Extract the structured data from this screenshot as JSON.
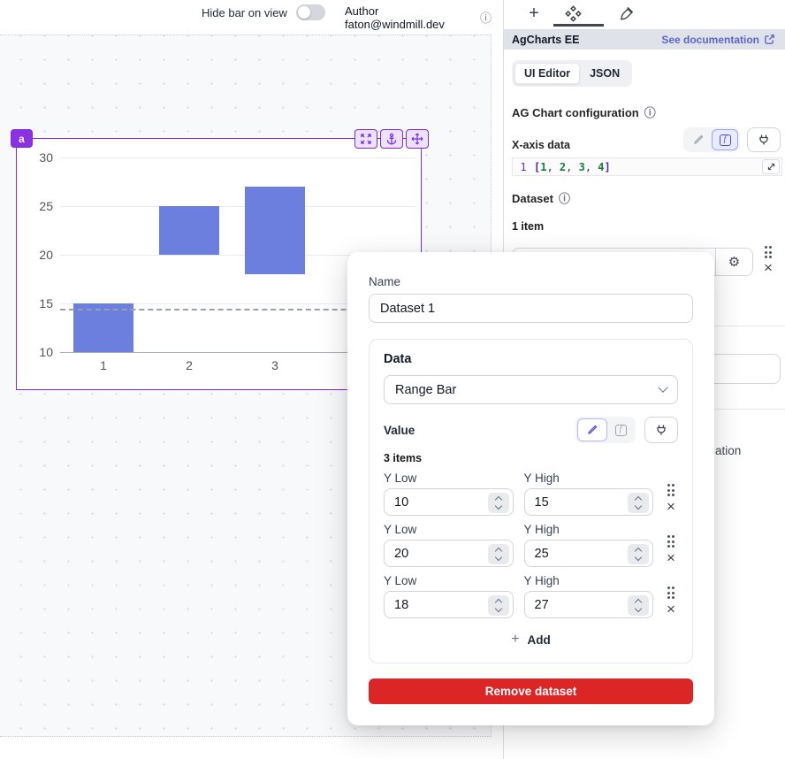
{
  "topbar": {
    "hide_bar_label": "Hide bar on view",
    "author_label": "Author faton@windmill.dev"
  },
  "right_panel": {
    "title": "AgCharts EE",
    "doc_link_label": "See documentation",
    "tab_ui_editor": "UI Editor",
    "tab_json": "JSON",
    "config_title": "AG Chart configuration",
    "xaxis_label": "X-axis data",
    "code_line_number": "1",
    "code_tokens": [
      {
        "t": "[",
        "k": "b"
      },
      {
        "t": "1",
        "k": "n"
      },
      {
        "t": ", ",
        "k": "p"
      },
      {
        "t": "2",
        "k": "n"
      },
      {
        "t": ", ",
        "k": "p"
      },
      {
        "t": "3",
        "k": "n"
      },
      {
        "t": ", ",
        "k": "p"
      },
      {
        "t": "4",
        "k": "n"
      },
      {
        "t": "]",
        "k": "b"
      }
    ],
    "dataset_label": "Dataset",
    "dataset_count": "1 item",
    "truncated_text_fragment": "ation"
  },
  "canvas": {
    "component_badge": "a"
  },
  "chart_data": {
    "type": "bar",
    "subtype": "range-bar-vertical",
    "title": "",
    "xlabel": "",
    "ylabel": "",
    "x_axis_data": [
      1,
      2,
      3,
      4
    ],
    "categories": [
      "1",
      "2",
      "3",
      "4"
    ],
    "series": [
      {
        "name": "Dataset 1",
        "ranges": [
          {
            "low": 10,
            "high": 15
          },
          {
            "low": 20,
            "high": 25
          },
          {
            "low": 18,
            "high": 27
          }
        ]
      }
    ],
    "y_ticks": [
      10,
      15,
      20,
      25,
      30
    ],
    "ylim": [
      10,
      30
    ],
    "grid": true,
    "legend": false,
    "bar_color": "#6c7fde",
    "dashed_reference_y": 14.5
  },
  "modal": {
    "name_label": "Name",
    "name_value": "Dataset 1",
    "data_title": "Data",
    "data_type_value": "Range Bar",
    "value_label": "Value",
    "items_count": "3 items",
    "low_label": "Y Low",
    "high_label": "Y High",
    "rows": [
      {
        "low": "10",
        "high": "15"
      },
      {
        "low": "20",
        "high": "25"
      },
      {
        "low": "18",
        "high": "27"
      }
    ],
    "add_label": "Add",
    "remove_label": "Remove dataset"
  },
  "colors": {
    "accent_purple": "#7c2ae8",
    "bar_blue": "#6c7fde",
    "link_indigo": "#5a67c4",
    "danger_red": "#dc2626",
    "panel_header_bg": "#dfe2e9"
  },
  "icons": [
    "plus-icon",
    "components-icon",
    "paintbrush-icon",
    "info-icon",
    "external-link-icon",
    "pencil-icon",
    "function-icon",
    "plug-icon",
    "expand-code-icon",
    "gear-icon",
    "drag-handle-icon",
    "close-icon",
    "chevron-down-icon",
    "stepper-up-icon",
    "stepper-down-icon",
    "fullscreen-icon",
    "anchor-icon",
    "move-icon",
    "toggle-off"
  ]
}
